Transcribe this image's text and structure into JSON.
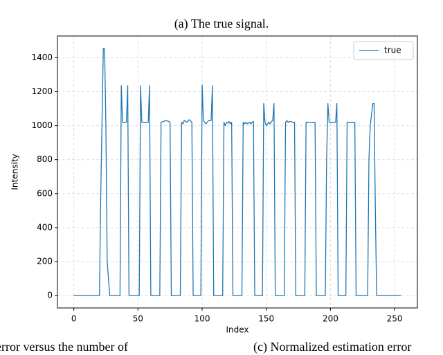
{
  "caption": "(a) The true signal.",
  "bottom_captions": [
    "error versus the number of",
    "(c) Normalized estimation error"
  ],
  "chart_data": {
    "type": "line",
    "xlabel": "Index",
    "ylabel": "Intensity",
    "xlim": [
      -12.75,
      267.75
    ],
    "ylim": [
      -72.75,
      1527.75
    ],
    "xticks": [
      0,
      50,
      100,
      150,
      200,
      250
    ],
    "yticks": [
      0,
      200,
      400,
      600,
      800,
      1000,
      1200,
      1400
    ],
    "grid": true,
    "legend": "upper right",
    "x": [
      0,
      20,
      21,
      23,
      24,
      25,
      26,
      28,
      36,
      37,
      38,
      41,
      42,
      43,
      51,
      52,
      53,
      58,
      59,
      60,
      67,
      68,
      70,
      72,
      74,
      75,
      76,
      83,
      84,
      85,
      86,
      88,
      90,
      92,
      93,
      99,
      100,
      101,
      103,
      105,
      107,
      108,
      109,
      116,
      117,
      118,
      119,
      120,
      121,
      122,
      123,
      124,
      131,
      132,
      133,
      134,
      135,
      136,
      137,
      138,
      139,
      140,
      141,
      147,
      148,
      149,
      150,
      151,
      152,
      153,
      154,
      155,
      156,
      157,
      164,
      165,
      166,
      167,
      168,
      171,
      172,
      173,
      180,
      181,
      187,
      188,
      189,
      196,
      197,
      198,
      199,
      202,
      203,
      204,
      205,
      206,
      212,
      213,
      214,
      218,
      219,
      220,
      229,
      230,
      231,
      233,
      234,
      235,
      236,
      255
    ],
    "series": [
      {
        "name": "true",
        "color": "#1f77b4",
        "values": [
          0,
          0,
          600,
          1455,
          1455,
          1000,
          200,
          0,
          0,
          1235,
          1020,
          1020,
          1235,
          0,
          0,
          1235,
          1020,
          1020,
          1235,
          0,
          0,
          1020,
          1025,
          1030,
          1025,
          1020,
          0,
          0,
          1020,
          1010,
          1030,
          1020,
          1035,
          1020,
          0,
          0,
          1240,
          1030,
          1010,
          1030,
          1030,
          1235,
          0,
          0,
          1020,
          1000,
          1020,
          1015,
          1025,
          1010,
          1020,
          0,
          0,
          1020,
          1010,
          1020,
          1010,
          1015,
          1020,
          1010,
          1020,
          1025,
          0,
          0,
          1130,
          1020,
          1000,
          1010,
          1020,
          1010,
          1025,
          1030,
          1130,
          0,
          0,
          1020,
          1030,
          1020,
          1025,
          1020,
          1020,
          0,
          0,
          1020,
          1020,
          1020,
          0,
          0,
          800,
          1130,
          1020,
          1020,
          1020,
          1020,
          1130,
          0,
          0,
          1020,
          1020,
          1020,
          1020,
          0,
          0,
          800,
          1000,
          1130,
          1130,
          500,
          0,
          0
        ]
      }
    ]
  }
}
